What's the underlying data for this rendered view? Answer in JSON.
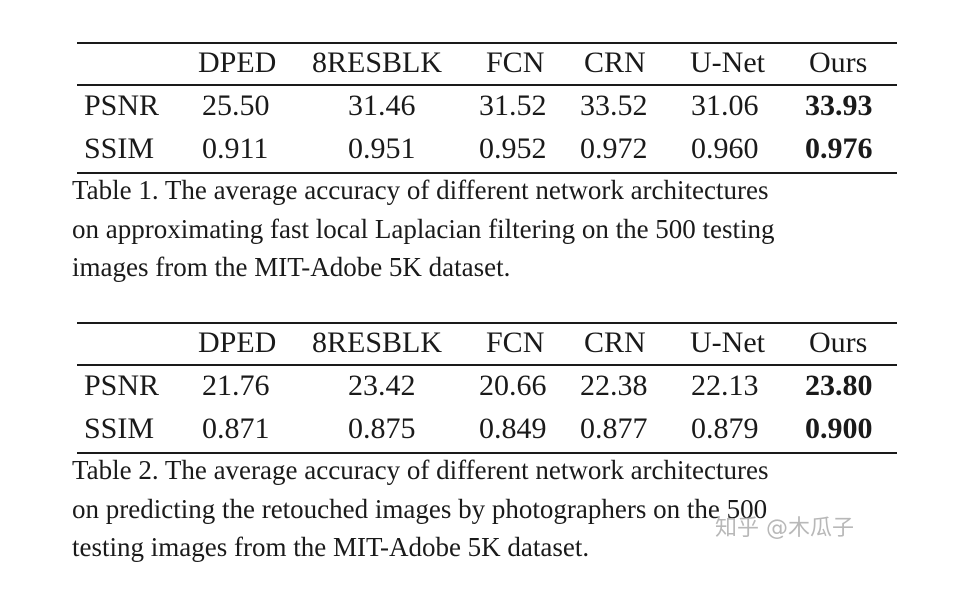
{
  "tables": [
    {
      "columns": [
        "DPED",
        "8RESBLK",
        "FCN",
        "CRN",
        "U-Net",
        "Ours"
      ],
      "rows": [
        {
          "label": "PSNR",
          "values": [
            "25.50",
            "31.46",
            "31.52",
            "33.52",
            "31.06",
            "33.93"
          ]
        },
        {
          "label": "SSIM",
          "values": [
            "0.911",
            "0.951",
            "0.952",
            "0.972",
            "0.960",
            "0.976"
          ]
        }
      ],
      "caption_lines": [
        "Table 1. The average accuracy of different network architectures",
        "on approximating fast local Laplacian filtering on the 500 testing",
        "images from the MIT-Adobe 5K dataset."
      ]
    },
    {
      "columns": [
        "DPED",
        "8RESBLK",
        "FCN",
        "CRN",
        "U-Net",
        "Ours"
      ],
      "rows": [
        {
          "label": "PSNR",
          "values": [
            "21.76",
            "23.42",
            "20.66",
            "22.38",
            "22.13",
            "23.80"
          ]
        },
        {
          "label": "SSIM",
          "values": [
            "0.871",
            "0.875",
            "0.849",
            "0.877",
            "0.879",
            "0.900"
          ]
        }
      ],
      "caption_lines": [
        "Table 2. The average accuracy of different network architectures",
        "on predicting the retouched images by photographers on the 500",
        "testing images from the MIT-Adobe 5K dataset."
      ]
    }
  ],
  "watermark": "知乎 @木瓜子"
}
